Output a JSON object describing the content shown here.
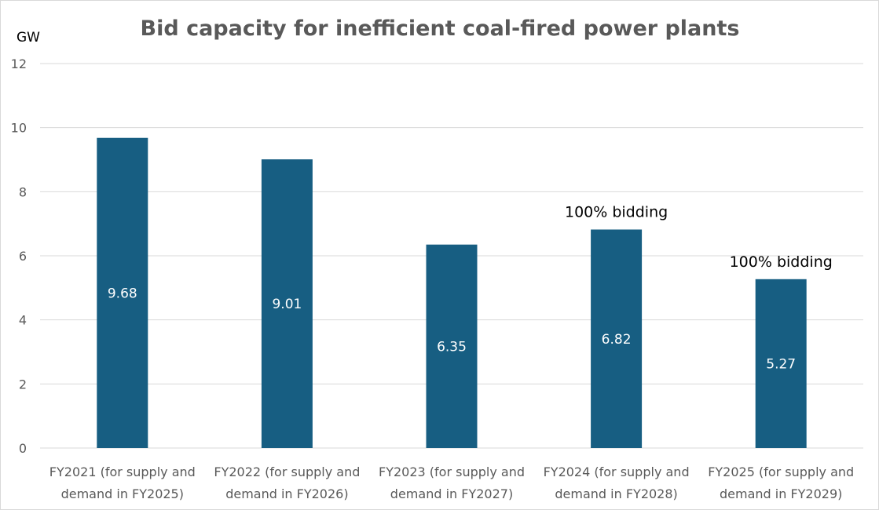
{
  "chart_data": {
    "type": "bar",
    "title": "Bid capacity for inefficient coal-fired power plants",
    "ylabel": "GW",
    "xlabel": "",
    "ylim": [
      0,
      12
    ],
    "yticks": [
      0,
      2,
      4,
      6,
      8,
      10,
      12
    ],
    "grid": true,
    "categories": [
      [
        "FY2021 (for supply and",
        "demand in FY2025)"
      ],
      [
        "FY2022 (for supply and",
        "demand in FY2026)"
      ],
      [
        "FY2023 (for supply and",
        "demand in FY2027)"
      ],
      [
        "FY2024 (for supply and",
        "demand in FY2028)"
      ],
      [
        "FY2025 (for supply and",
        "demand in FY2029)"
      ]
    ],
    "values": [
      9.68,
      9.01,
      6.35,
      6.82,
      5.27
    ],
    "data_labels": [
      "9.68",
      "9.01",
      "6.35",
      "6.82",
      "5.27"
    ],
    "annotations": [
      {
        "category_index": 3,
        "text": "100% bidding"
      },
      {
        "category_index": 4,
        "text": "100% bidding"
      }
    ],
    "bar_color": "#175e82"
  }
}
